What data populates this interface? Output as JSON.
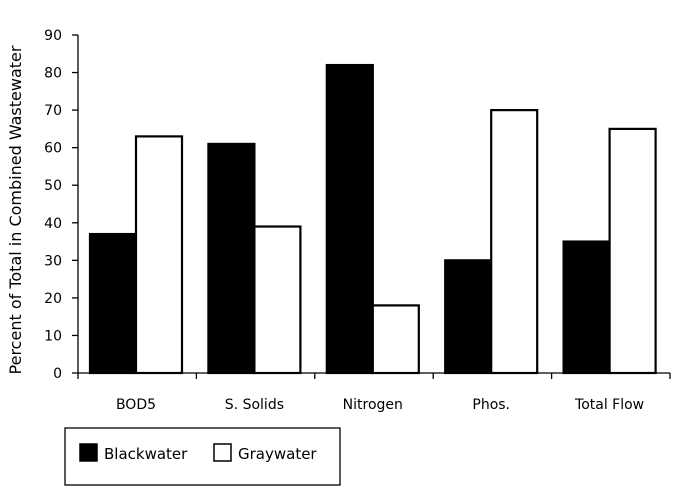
{
  "chart_data": {
    "type": "bar",
    "title": "",
    "xlabel": "",
    "ylabel": "Percent of Total in Combined Wastewater",
    "ylim": [
      0,
      90
    ],
    "yticks": [
      0,
      10,
      20,
      30,
      40,
      50,
      60,
      70,
      80,
      90
    ],
    "grid": false,
    "legend_position": "bottom-left",
    "categories": [
      "BOD5",
      "S. Solids",
      "Nitrogen",
      "Phos.",
      "Total Flow"
    ],
    "series": [
      {
        "name": "Blackwater",
        "color": "#000000",
        "values": [
          37,
          61,
          82,
          30,
          35
        ]
      },
      {
        "name": "Graywater",
        "color": "#ffffff",
        "values": [
          63,
          39,
          18,
          70,
          65
        ]
      }
    ]
  }
}
